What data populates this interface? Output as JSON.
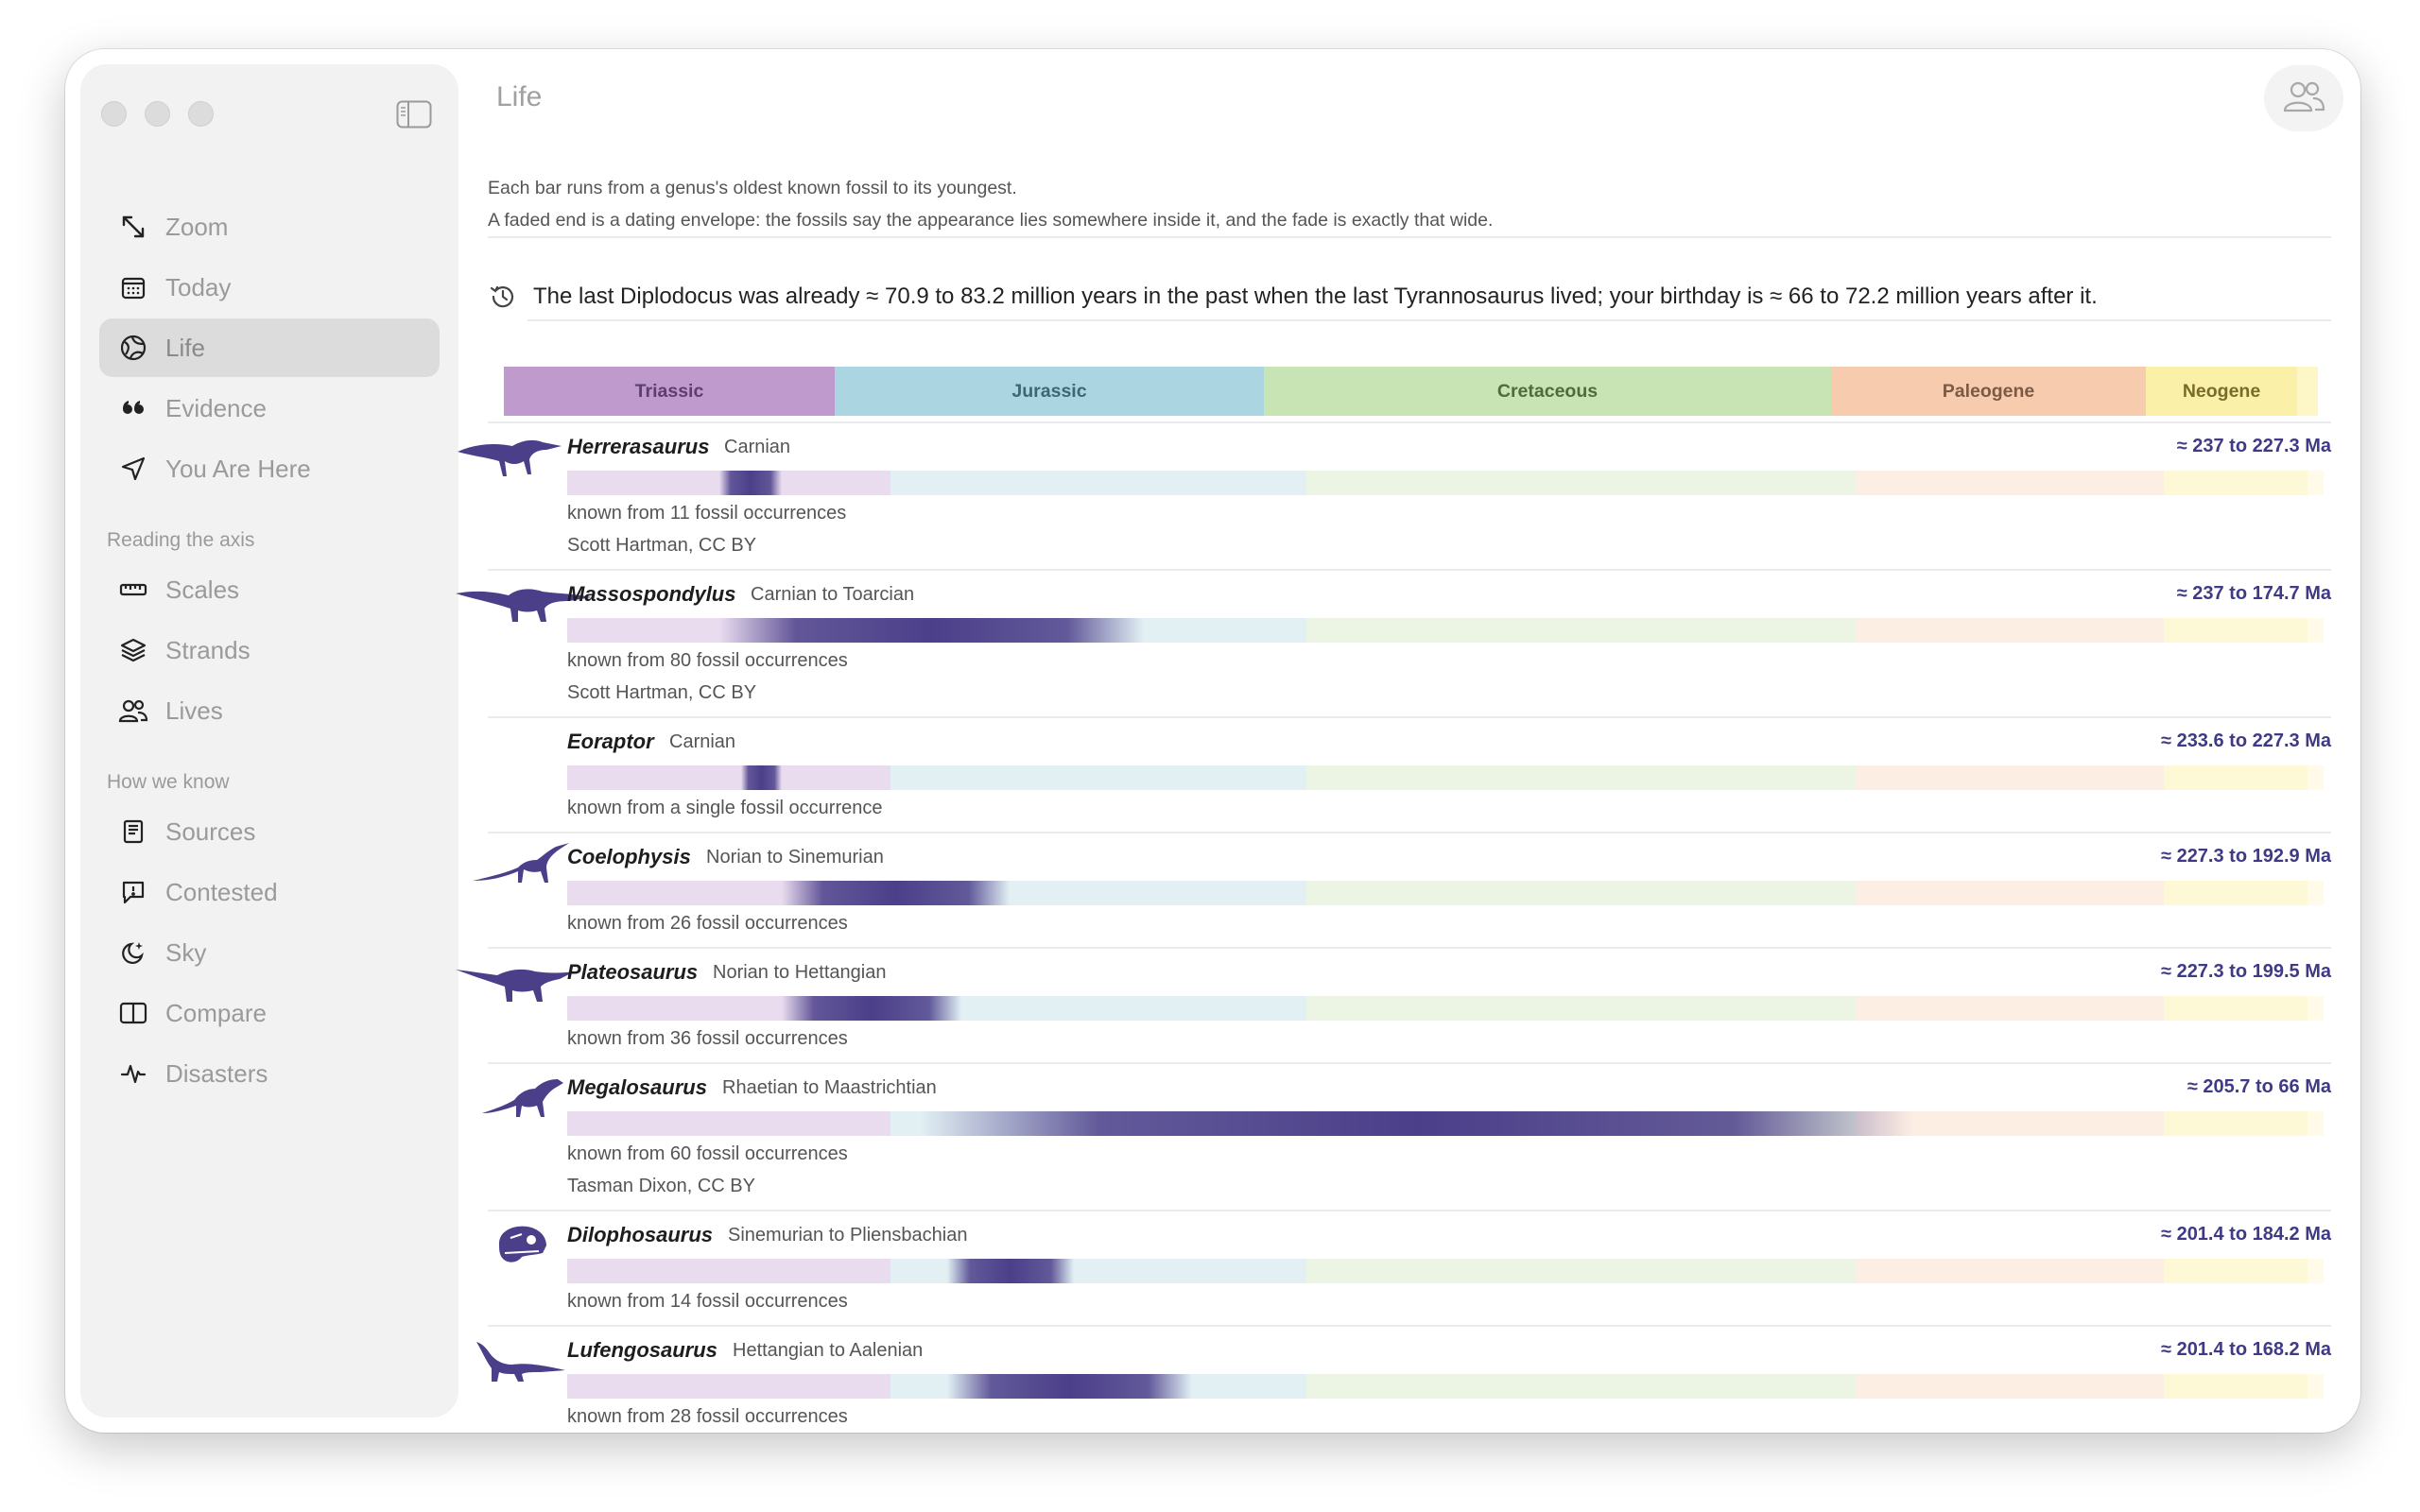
{
  "window": {
    "title": "Life"
  },
  "sidebar": {
    "items": [
      {
        "label": "Zoom",
        "icon": "diagonal-arrows-icon"
      },
      {
        "label": "Today",
        "icon": "calendar-icon"
      },
      {
        "label": "Life",
        "icon": "globe-icon",
        "selected": true
      },
      {
        "label": "Evidence",
        "icon": "quote-icon"
      },
      {
        "label": "You Are Here",
        "icon": "location-arrow-icon"
      }
    ],
    "section_axis": {
      "title": "Reading the axis",
      "items": [
        {
          "label": "Scales",
          "icon": "ruler-icon"
        },
        {
          "label": "Strands",
          "icon": "layers-icon"
        },
        {
          "label": "Lives",
          "icon": "people-icon"
        }
      ]
    },
    "section_know": {
      "title": "How we know",
      "items": [
        {
          "label": "Sources",
          "icon": "book-icon"
        },
        {
          "label": "Contested",
          "icon": "speech-exclamation-icon"
        },
        {
          "label": "Sky",
          "icon": "moon-stars-icon"
        },
        {
          "label": "Compare",
          "icon": "split-panel-icon"
        },
        {
          "label": "Disasters",
          "icon": "pulse-icon"
        }
      ]
    }
  },
  "intro": {
    "line1": "Each bar runs from a genus's oldest known fossil to its youngest.",
    "line2": "A faded end is a dating envelope: the fossils say the appearance lies somewhere inside it, and the fade is exactly that wide."
  },
  "statement": "The last Diplodocus was already ≈ 70.9 to 83.2 million years in the past when the last Tyrannosaurus lived; your birthday is ≈ 66 to 72.2 million years after it.",
  "periods": [
    {
      "label": "Triassic",
      "color": "#bf9bcd",
      "text_color": "#5e3d70"
    },
    {
      "label": "Jurassic",
      "color": "#abd5e1",
      "text_color": "#3e6673"
    },
    {
      "label": "Cretaceous",
      "color": "#c9e4b4",
      "text_color": "#4f6a3d"
    },
    {
      "label": "Paleogene",
      "color": "#f7cbae",
      "text_color": "#7d5a44"
    },
    {
      "label": "Neogene",
      "color": "#fbf0a8",
      "text_color": "#7a6b2a"
    }
  ],
  "genera": [
    {
      "name": "Herrerasaurus",
      "stages": "Carnian",
      "range": "≈ 237 to 227.3 Ma",
      "occurrences": "known from 11 fossil occurrences",
      "credit": "Scott Hartman, CC BY",
      "oldest_ma": 237,
      "youngest_ma": 227.3,
      "silhouette": "herrerasaurus-silhouette"
    },
    {
      "name": "Massospondylus",
      "stages": "Carnian to Toarcian",
      "range": "≈ 237 to 174.7 Ma",
      "occurrences": "known from 80 fossil occurrences",
      "credit": "Scott Hartman, CC BY",
      "oldest_ma": 237,
      "youngest_ma": 174.7,
      "silhouette": "massospondylus-silhouette"
    },
    {
      "name": "Eoraptor",
      "stages": "Carnian",
      "range": "≈ 233.6 to 227.3 Ma",
      "occurrences": "known from a single fossil occurrence",
      "credit": "",
      "oldest_ma": 233.6,
      "youngest_ma": 227.3,
      "silhouette": ""
    },
    {
      "name": "Coelophysis",
      "stages": "Norian to Sinemurian",
      "range": "≈ 227.3 to 192.9 Ma",
      "occurrences": "known from 26 fossil occurrences",
      "credit": "",
      "oldest_ma": 227.3,
      "youngest_ma": 192.9,
      "silhouette": "coelophysis-silhouette"
    },
    {
      "name": "Plateosaurus",
      "stages": "Norian to Hettangian",
      "range": "≈ 227.3 to 199.5 Ma",
      "occurrences": "known from 36 fossil occurrences",
      "credit": "",
      "oldest_ma": 227.3,
      "youngest_ma": 199.5,
      "silhouette": "plateosaurus-silhouette"
    },
    {
      "name": "Megalosaurus",
      "stages": "Rhaetian to Maastrichtian",
      "range": "≈ 205.7 to 66 Ma",
      "occurrences": "known from 60 fossil occurrences",
      "credit": "Tasman Dixon, CC BY",
      "oldest_ma": 205.7,
      "youngest_ma": 66,
      "silhouette": "megalosaurus-silhouette"
    },
    {
      "name": "Dilophosaurus",
      "stages": "Sinemurian to Pliensbachian",
      "range": "≈ 201.4 to 184.2 Ma",
      "occurrences": "known from 14 fossil occurrences",
      "credit": "",
      "oldest_ma": 201.4,
      "youngest_ma": 184.2,
      "silhouette": "dilophosaurus-skull-silhouette"
    },
    {
      "name": "Lufengosaurus",
      "stages": "Hettangian to Aalenian",
      "range": "≈ 201.4 to 168.2 Ma",
      "occurrences": "known from 28 fossil occurrences",
      "credit": "",
      "oldest_ma": 201.4,
      "youngest_ma": 168.2,
      "silhouette": "lufengosaurus-silhouette"
    }
  ],
  "colors": {
    "bar": "#4b3f8a",
    "accent": "#3f3a85"
  }
}
